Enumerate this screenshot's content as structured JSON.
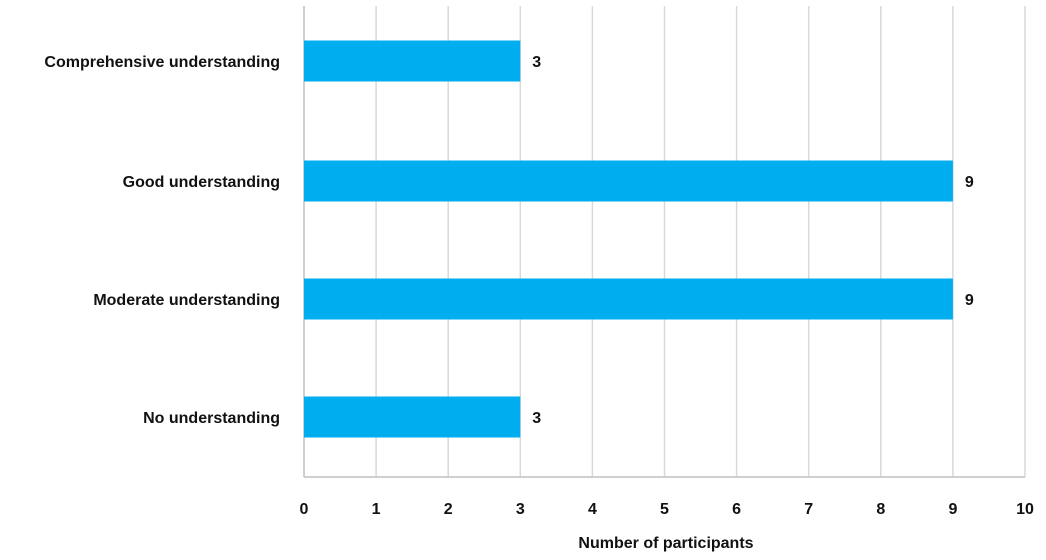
{
  "chart_data": {
    "type": "bar",
    "orientation": "horizontal",
    "title": "",
    "xlabel": "Number of participants",
    "ylabel": "",
    "categories": [
      "Comprehensive understanding",
      "Good understanding",
      "Moderate understanding",
      "No understanding"
    ],
    "values": [
      3,
      9,
      9,
      3
    ],
    "xlim": [
      0,
      10
    ],
    "x_ticks": [
      "0",
      "1",
      "2",
      "3",
      "4",
      "5",
      "6",
      "7",
      "8",
      "9",
      "10"
    ],
    "grid": true,
    "legend": "none",
    "data_labels": true,
    "colors": {
      "bar": "#00aeef",
      "grid": "#d9d9d9",
      "axis": "#bfbfbf",
      "text": "#111111"
    }
  }
}
